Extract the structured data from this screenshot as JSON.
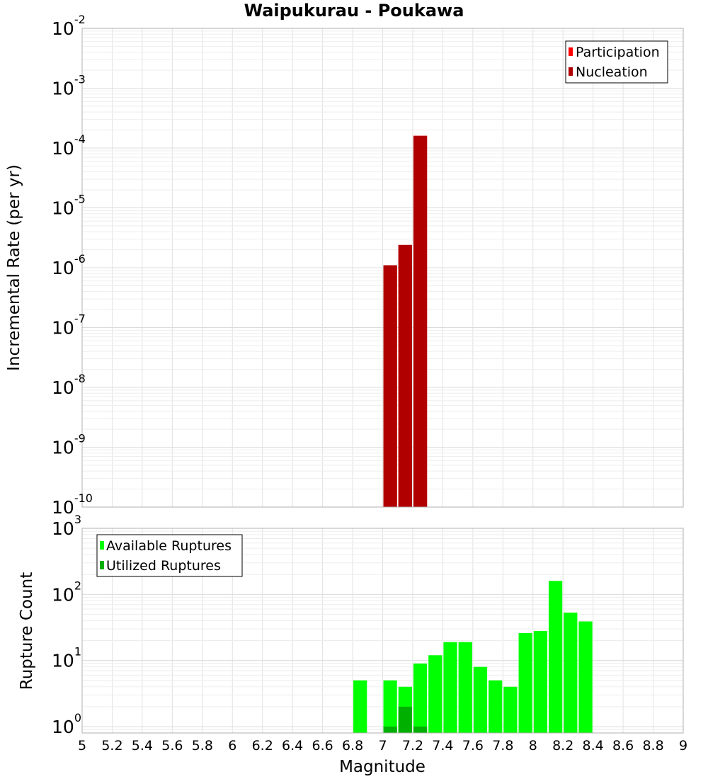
{
  "chart_data": {
    "type": "bar",
    "title": "Waipukurau - Poukawa",
    "xlabel": "Magnitude",
    "xlim": [
      5,
      9
    ],
    "x_ticks": [
      "5",
      "5.2",
      "5.4",
      "5.6",
      "5.8",
      "6",
      "6.2",
      "6.4",
      "6.6",
      "6.8",
      "7",
      "7.2",
      "7.4",
      "7.6",
      "7.8",
      "8",
      "8.2",
      "8.4",
      "8.6",
      "8.8",
      "9"
    ],
    "grid": true,
    "panels": [
      {
        "ylabel": "Incremental Rate (per yr)",
        "yscale": "log",
        "ylim": [
          1e-10,
          0.01
        ],
        "y_tick_exponents": [
          "-10",
          "-9",
          "-8",
          "-7",
          "-6",
          "-5",
          "-4",
          "-3",
          "-2"
        ],
        "legend": {
          "position": "top-right",
          "entries": [
            {
              "label": "Participation",
              "color": "#ff0000"
            },
            {
              "label": "Nucleation",
              "color": "#b00000"
            }
          ]
        },
        "series": [
          {
            "name": "Participation",
            "color": "#ff0000",
            "x": [
              7.05,
              7.15,
              7.25
            ],
            "values": [
              1.1e-06,
              2.4e-06,
              0.00016
            ]
          },
          {
            "name": "Nucleation",
            "color": "#b00000",
            "x": [
              7.05,
              7.15,
              7.25
            ],
            "values": [
              1.1e-06,
              2.4e-06,
              0.00016
            ]
          }
        ]
      },
      {
        "ylabel": "Rupture Count",
        "yscale": "log",
        "ylim": [
          0.8,
          1000
        ],
        "y_tick_exponents": [
          "0",
          "1",
          "2",
          "3"
        ],
        "legend": {
          "position": "top-left",
          "entries": [
            {
              "label": "Available Ruptures",
              "color": "#00ff00"
            },
            {
              "label": "Utilized Ruptures",
              "color": "#00b000"
            }
          ]
        },
        "series": [
          {
            "name": "Available Ruptures",
            "color": "#00ff00",
            "x": [
              6.85,
              7.05,
              7.15,
              7.25,
              7.35,
              7.45,
              7.55,
              7.65,
              7.75,
              7.85,
              7.95,
              8.05,
              8.15,
              8.25,
              8.35
            ],
            "values": [
              5,
              5,
              4,
              9,
              12,
              19,
              19,
              8,
              5,
              4,
              26,
              28,
              160,
              53,
              39
            ]
          },
          {
            "name": "Utilized Ruptures",
            "color": "#00b000",
            "x": [
              7.05,
              7.15,
              7.25
            ],
            "values": [
              1,
              2,
              1
            ]
          }
        ]
      }
    ]
  }
}
